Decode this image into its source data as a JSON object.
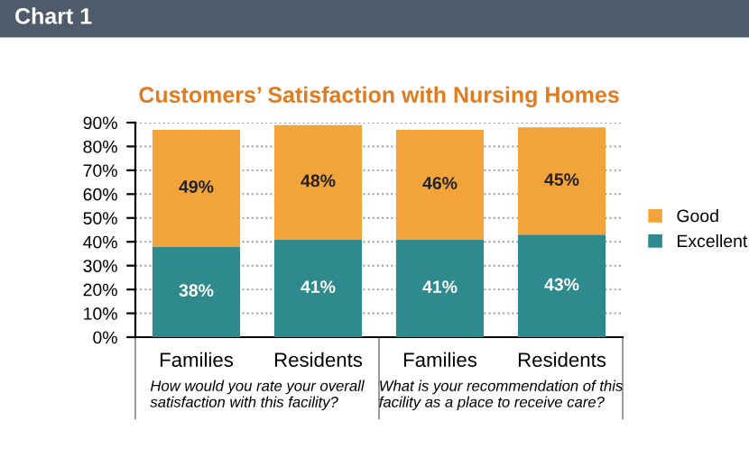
{
  "chart_data": {
    "type": "bar",
    "stacked": true,
    "title": "Customers’ Satisfaction with Nursing Homes",
    "categories": [
      "Families",
      "Residents",
      "Families",
      "Residents"
    ],
    "series": [
      {
        "name": "Excellent",
        "color": "#2e8a8c",
        "values": [
          38,
          41,
          41,
          43
        ],
        "value_labels": [
          "38%",
          "41%",
          "41%",
          "43%"
        ]
      },
      {
        "name": "Good",
        "color": "#f2a43a",
        "values": [
          49,
          48,
          46,
          45
        ],
        "value_labels": [
          "49%",
          "48%",
          "46%",
          "45%"
        ]
      }
    ],
    "ylim": [
      0,
      90
    ],
    "yticks": [
      {
        "value": 0,
        "label": "0%"
      },
      {
        "value": 10,
        "label": "10%"
      },
      {
        "value": 20,
        "label": "20%"
      },
      {
        "value": 30,
        "label": "30%"
      },
      {
        "value": 40,
        "label": "40%"
      },
      {
        "value": 50,
        "label": "50%"
      },
      {
        "value": 60,
        "label": "60%"
      },
      {
        "value": 70,
        "label": "70%"
      },
      {
        "value": 80,
        "label": "80%"
      },
      {
        "value": 90,
        "label": "90%"
      }
    ],
    "grid": "y",
    "legend": "right",
    "annotations": [
      "Chart 1",
      "How would you rate your overall\nsatisfaction with this facility?",
      "What is your recommendation of this\nfacility as a place to receive care?"
    ]
  }
}
